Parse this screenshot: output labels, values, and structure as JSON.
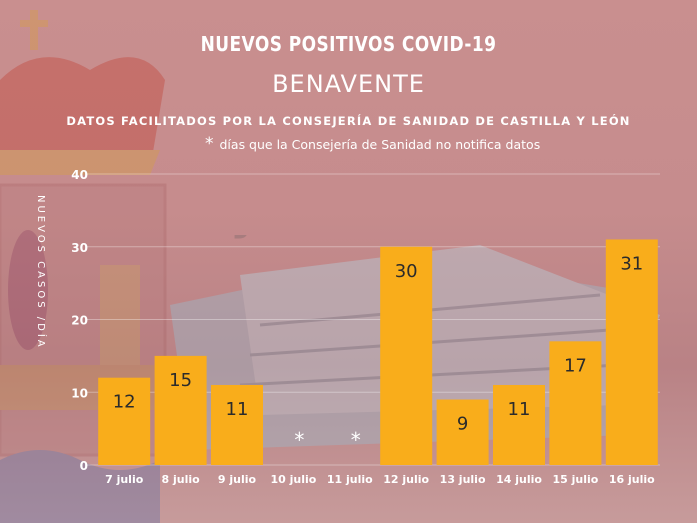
{
  "title": "NUEVOS POSITIVOS COVID-19",
  "subtitle": "BENAVENTE",
  "source_note": "DATOS FACILITADOS POR LA CONSEJERÍA DE SANIDAD DE CASTILLA Y LEÓN",
  "asterisk_note": {
    "symbol": "*",
    "text": "días que la Consejería de Sanidad no notifica datos"
  },
  "colors": {
    "bar": "#f9ad1b",
    "text": "#ffffff",
    "label_dark": "#2b2b2b"
  },
  "chart_data": {
    "type": "bar",
    "ylabel": "NUEVOS CASOS /DÍA",
    "xlabel": "",
    "ylim": [
      0,
      40
    ],
    "yticks": [
      0,
      10,
      20,
      30,
      40
    ],
    "grid": true,
    "categories": [
      "7 julio",
      "8 julio",
      "9 julio",
      "10 julio",
      "11 julio",
      "12 julio",
      "13 julio",
      "14 julio",
      "15 julio",
      "16 julio"
    ],
    "values": [
      12,
      15,
      11,
      null,
      null,
      30,
      9,
      11,
      17,
      31
    ],
    "missing_marker": "*"
  }
}
